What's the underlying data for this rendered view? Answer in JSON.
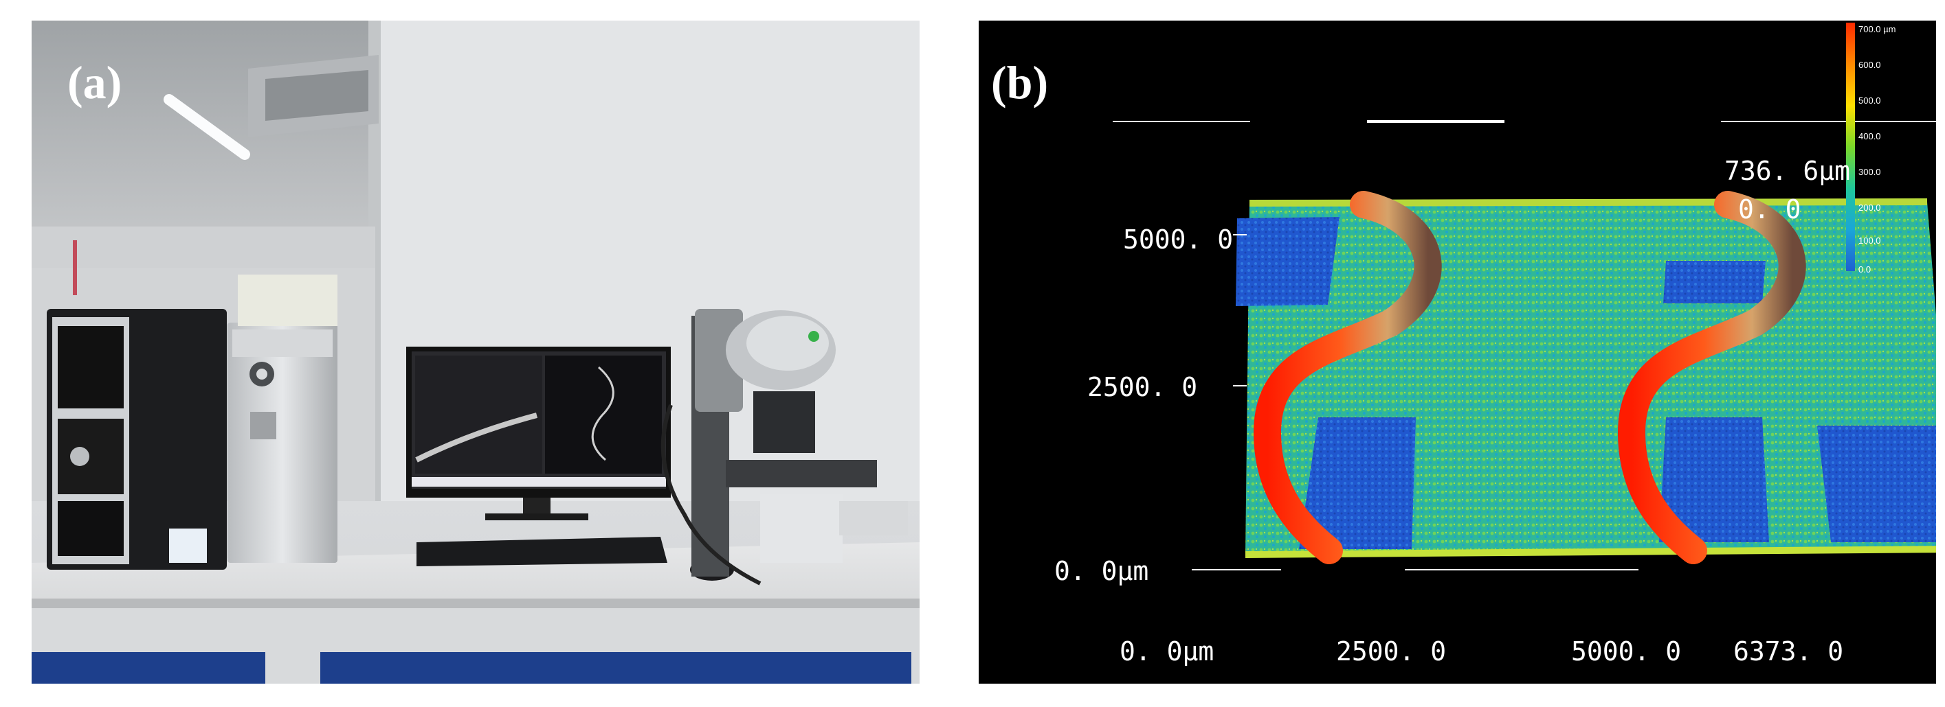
{
  "panels": {
    "a": {
      "label": "(a)"
    },
    "b": {
      "label": "(b)"
    }
  },
  "profile_plot": {
    "colorbar": {
      "labels": [
        "700.0 µm",
        "600.0",
        "500.0",
        "400.0",
        "300.0",
        "200.0",
        "100.0",
        "0.0"
      ],
      "colors": [
        "#ff2a00",
        "#ff8a00",
        "#ffe000",
        "#7ad82a",
        "#1fc79a",
        "#1aa6d8",
        "#1e5fd2"
      ]
    },
    "z_axis": {
      "max": "736. 6μm",
      "min": "0. 0"
    },
    "y_axis": {
      "ticks": [
        "5000. 0",
        "2500. 0",
        "0. 0μm"
      ]
    },
    "x_axis": {
      "ticks": [
        "0. 0μm",
        "2500. 0",
        "5000. 0",
        "6373. 0"
      ]
    }
  }
}
